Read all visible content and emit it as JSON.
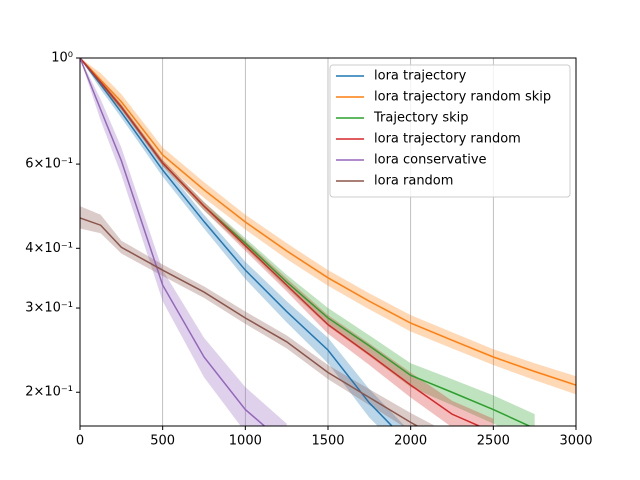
{
  "chart_data": {
    "type": "line",
    "x": [
      0,
      125,
      250,
      500,
      750,
      1000,
      1250,
      1500,
      1750,
      2000,
      2250,
      2500,
      2750,
      3000
    ],
    "xlim": [
      0,
      3000
    ],
    "xticks": [
      0,
      500,
      1000,
      1500,
      2000,
      2500,
      3000
    ],
    "ylim": [
      0.17,
      1
    ],
    "yscale": "log",
    "yticks": [
      {
        "value": 1,
        "label": "10⁰"
      },
      {
        "value": 0.6,
        "label": "6×10⁻¹"
      },
      {
        "value": 0.4,
        "label": "4×10⁻¹"
      },
      {
        "value": 0.3,
        "label": "3×10⁻¹"
      },
      {
        "value": 0.2,
        "label": "2×10⁻¹"
      }
    ],
    "grid": "x",
    "legend": "upper right",
    "series": [
      {
        "name": "lora trajectory",
        "color": "#1f77b4",
        "values": [
          1,
          0.88,
          0.77,
          0.583,
          0.455,
          0.36,
          0.295,
          0.245,
          0.19,
          0.155,
          null,
          null,
          null,
          null
        ],
        "lower": [
          1,
          0.86,
          0.75,
          0.565,
          0.44,
          0.345,
          0.28,
          0.23,
          0.177,
          0.145,
          null,
          null,
          null,
          null
        ],
        "upper": [
          1,
          0.9,
          0.79,
          0.6,
          0.47,
          0.375,
          0.31,
          0.26,
          0.203,
          0.165,
          null,
          null,
          null,
          null
        ]
      },
      {
        "name": "lora trajectory random skip",
        "color": "#ff7f0e",
        "values": [
          1,
          0.9,
          0.81,
          0.627,
          0.53,
          0.454,
          0.395,
          0.347,
          0.31,
          0.279,
          0.257,
          0.237,
          0.221,
          0.207
        ],
        "lower": [
          1,
          0.87,
          0.78,
          0.605,
          0.51,
          0.438,
          0.38,
          0.334,
          0.298,
          0.268,
          0.247,
          0.228,
          0.212,
          0.198
        ],
        "upper": [
          1,
          0.93,
          0.84,
          0.65,
          0.55,
          0.47,
          0.41,
          0.36,
          0.322,
          0.29,
          0.267,
          0.246,
          0.23,
          0.216
        ]
      },
      {
        "name": "Trajectory skip",
        "color": "#2ca02c",
        "values": [
          1,
          0.89,
          0.79,
          0.603,
          0.49,
          0.41,
          0.34,
          0.286,
          0.25,
          0.217,
          0.2,
          0.184,
          0.168,
          null
        ],
        "lower": [
          1,
          0.88,
          0.78,
          0.595,
          0.48,
          0.4,
          0.33,
          0.275,
          0.238,
          0.205,
          0.188,
          0.172,
          0.157,
          null
        ],
        "upper": [
          1,
          0.9,
          0.8,
          0.612,
          0.5,
          0.42,
          0.352,
          0.3,
          0.263,
          0.23,
          0.213,
          0.197,
          0.18,
          null
        ]
      },
      {
        "name": "lora trajectory random",
        "color": "#d62728",
        "values": [
          1,
          0.89,
          0.79,
          0.603,
          0.49,
          0.405,
          0.335,
          0.277,
          0.24,
          0.207,
          0.18,
          0.165,
          null,
          null
        ],
        "lower": [
          1,
          0.88,
          0.78,
          0.595,
          0.48,
          0.395,
          0.325,
          0.265,
          0.228,
          0.195,
          0.169,
          0.155,
          null,
          null
        ],
        "upper": [
          1,
          0.9,
          0.8,
          0.612,
          0.5,
          0.415,
          0.346,
          0.29,
          0.253,
          0.22,
          0.192,
          0.176,
          null,
          null
        ]
      },
      {
        "name": "lora conservative",
        "color": "#9467bd",
        "values": [
          1,
          0.78,
          0.61,
          0.335,
          0.237,
          0.184,
          0.155,
          null,
          null,
          null,
          null,
          null,
          null,
          null
        ],
        "lower": [
          1,
          0.74,
          0.57,
          0.31,
          0.215,
          0.165,
          0.14,
          null,
          null,
          null,
          null,
          null,
          null,
          null
        ],
        "upper": [
          1,
          0.82,
          0.65,
          0.36,
          0.26,
          0.205,
          0.172,
          null,
          null,
          null,
          null,
          null,
          null,
          null
        ]
      },
      {
        "name": "lora random",
        "color": "#8c564b",
        "values": [
          0.463,
          0.447,
          0.402,
          0.36,
          0.324,
          0.286,
          0.255,
          0.22,
          0.195,
          0.173,
          0.155,
          null,
          null,
          null
        ],
        "lower": [
          0.44,
          0.43,
          0.39,
          0.35,
          0.315,
          0.278,
          0.247,
          0.213,
          0.188,
          0.166,
          0.148,
          null,
          null,
          null
        ],
        "upper": [
          0.49,
          0.47,
          0.415,
          0.37,
          0.333,
          0.295,
          0.263,
          0.228,
          0.203,
          0.181,
          0.163,
          null,
          null,
          null
        ]
      }
    ]
  }
}
